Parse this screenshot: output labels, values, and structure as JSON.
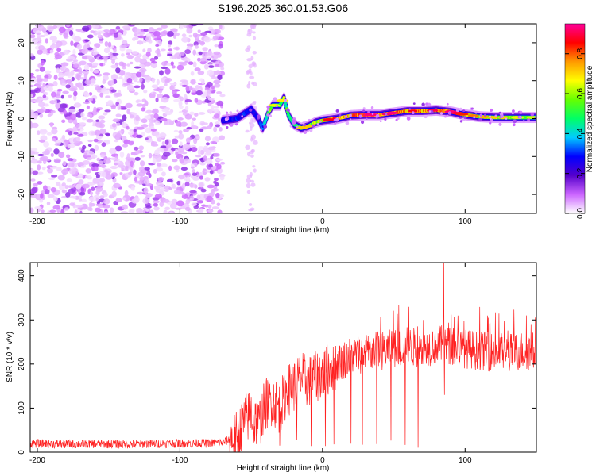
{
  "chart_data": [
    {
      "type": "heatmap",
      "title": "S196.2025.360.01.53.G06",
      "xlabel": "Height of straight line (km)",
      "ylabel": "Frequency (Hz)",
      "xlim": [
        -205,
        150
      ],
      "ylim": [
        -25,
        25
      ],
      "xticks": [
        -200,
        -100,
        0,
        100
      ],
      "xtick_labels": [
        "-200",
        "-100",
        "0",
        "100"
      ],
      "yticks": [
        -20,
        -10,
        0,
        10,
        20
      ],
      "ytick_labels": [
        "-20",
        "-10",
        "0",
        "10",
        "20"
      ],
      "colorbar": {
        "label": "Normalized spectral amplitude",
        "range": [
          0,
          0.95
        ],
        "ticks": [
          0.0,
          0.2,
          0.4,
          0.6,
          0.8
        ],
        "tick_labels": [
          "0.0",
          "0.2",
          "0.4",
          "0.6",
          "0.8"
        ],
        "colors": [
          "#ffffff",
          "#cc66ff",
          "#5500cc",
          "#0000ff",
          "#00ccff",
          "#00ff66",
          "#66ff00",
          "#ffff00",
          "#ff9900",
          "#ff0000",
          "#ff0099"
        ]
      },
      "noise_region": {
        "x_range": [
          -205,
          -70
        ],
        "freq_range": [
          -25,
          25
        ],
        "amplitude": "low (0.0-0.1)"
      },
      "ridge": {
        "x": [
          -70,
          -60,
          -50,
          -45,
          -42,
          -38,
          -35,
          -30,
          -27,
          -24,
          -20,
          -15,
          -10,
          -5,
          0,
          10,
          20,
          30,
          40,
          50,
          60,
          70,
          80,
          90,
          100,
          110,
          120,
          130,
          140,
          150
        ],
        "freq": [
          -0.5,
          0.0,
          2.5,
          0.0,
          -2.5,
          1.5,
          3.5,
          3.5,
          5.5,
          1.0,
          -1.5,
          -2.5,
          -2.0,
          -1.0,
          -0.5,
          0.0,
          0.8,
          1.0,
          1.0,
          1.5,
          2.0,
          2.0,
          2.2,
          1.8,
          1.0,
          0.5,
          0.3,
          0.3,
          0.3,
          0.3
        ],
        "amplitude": [
          0.25,
          0.3,
          0.3,
          0.25,
          0.35,
          0.6,
          0.55,
          0.5,
          0.6,
          0.5,
          0.55,
          0.6,
          0.6,
          0.65,
          0.7,
          0.85,
          0.8,
          0.9,
          0.8,
          0.85,
          0.75,
          0.8,
          0.8,
          0.85,
          0.7,
          0.65,
          0.6,
          0.6,
          0.55,
          0.5
        ]
      }
    },
    {
      "type": "line",
      "title": "",
      "xlabel": "Height of straight line (km)",
      "ylabel": "SNR (10 * v/v)",
      "xlim": [
        -205,
        150
      ],
      "ylim": [
        0,
        430
      ],
      "xticks": [
        -200,
        -100,
        0,
        100
      ],
      "xtick_labels": [
        "-200",
        "-100",
        "0",
        "100"
      ],
      "yticks": [
        0,
        100,
        200,
        300,
        400
      ],
      "ytick_labels": [
        "0",
        "100",
        "200",
        "300",
        "400"
      ],
      "series": [
        {
          "name": "SNR",
          "color": "#ff2222",
          "x": [
            -205,
            -180,
            -160,
            -140,
            -120,
            -100,
            -80,
            -70,
            -60,
            -55,
            -50,
            -45,
            -40,
            -35,
            -30,
            -25,
            -20,
            -15,
            -10,
            -5,
            0,
            5,
            10,
            15,
            20,
            30,
            40,
            50,
            60,
            70,
            80,
            90,
            100,
            110,
            120,
            130,
            140,
            150
          ],
          "values": [
            20,
            18,
            19,
            18,
            19,
            20,
            20,
            22,
            35,
            70,
            90,
            60,
            110,
            120,
            100,
            140,
            150,
            170,
            160,
            170,
            180,
            190,
            200,
            210,
            220,
            225,
            230,
            235,
            240,
            235,
            245,
            240,
            235,
            230,
            228,
            225,
            230,
            228
          ]
        }
      ],
      "spikes_down": [
        -60,
        -48,
        -30,
        -18,
        -8,
        2,
        8,
        20,
        28,
        38,
        48,
        58,
        67
      ],
      "peak": {
        "x": 85,
        "y": 430
      }
    }
  ]
}
